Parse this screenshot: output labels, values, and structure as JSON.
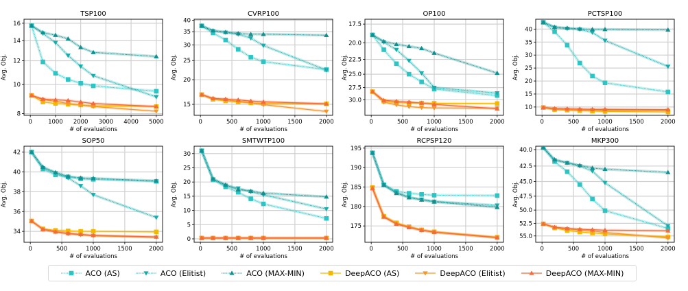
{
  "legend": [
    {
      "name": "ACO (AS)",
      "color": "#2ec4c4",
      "marker": "square",
      "dashed": true
    },
    {
      "name": "ACO (Elitist)",
      "color": "#1aabab",
      "marker": "triangle-down",
      "dashed": true
    },
    {
      "name": "ACO (MAX-MIN)",
      "color": "#148f8f",
      "marker": "triangle-up",
      "dashed": true
    },
    {
      "name": "DeepACO (AS)",
      "color": "#f5b800",
      "marker": "square",
      "dashed": false
    },
    {
      "name": "DeepACO (Elitist)",
      "color": "#f5962a",
      "marker": "triangle-down",
      "dashed": false
    },
    {
      "name": "DeepACO (MAX-MIN)",
      "color": "#f26b3a",
      "marker": "triangle-up",
      "dashed": false
    }
  ],
  "chart_data": [
    {
      "type": "line",
      "title": "TSP100",
      "xlabel": "# of evaluations",
      "ylabel": "Avg. Obj.",
      "yscale": "log",
      "inverted": false,
      "xlim": [
        -250,
        5250
      ],
      "ylim": [
        7.9,
        16.5
      ],
      "xticks": [
        0,
        1000,
        2000,
        3000,
        4000,
        5000
      ],
      "yticks": [
        8,
        10,
        12,
        14,
        16
      ],
      "yticklabels": [
        "8",
        "10",
        "12",
        "14",
        "16"
      ],
      "x": [
        50,
        500,
        1000,
        1500,
        2000,
        2500,
        5000
      ],
      "series": [
        {
          "name": "ACO (AS)",
          "values": [
            15.7,
            11.9,
            10.9,
            10.4,
            10.1,
            9.9,
            9.5
          ]
        },
        {
          "name": "ACO (Elitist)",
          "values": [
            15.7,
            14.8,
            13.8,
            12.5,
            11.5,
            10.7,
            9.1
          ]
        },
        {
          "name": "ACO (MAX-MIN)",
          "values": [
            15.7,
            14.9,
            14.6,
            14.2,
            13.3,
            12.8,
            12.4
          ]
        },
        {
          "name": "DeepACO (AS)",
          "values": [
            9.2,
            8.75,
            8.65,
            8.6,
            8.55,
            8.5,
            8.45
          ]
        },
        {
          "name": "DeepACO (Elitist)",
          "values": [
            9.2,
            8.9,
            8.8,
            8.65,
            8.55,
            8.45,
            8.15
          ]
        },
        {
          "name": "DeepACO (MAX-MIN)",
          "values": [
            9.2,
            8.95,
            8.9,
            8.85,
            8.75,
            8.65,
            8.45
          ]
        }
      ]
    },
    {
      "type": "line",
      "title": "CVRP100",
      "xlabel": "# of evaluations",
      "ylabel": "Avg. Obj.",
      "yscale": "log",
      "inverted": false,
      "xlim": [
        -100,
        2100
      ],
      "ylim": [
        13.2,
        40.5
      ],
      "xticks": [
        0,
        500,
        1000,
        1500,
        2000
      ],
      "yticks": [
        15,
        20,
        25,
        30,
        35,
        40
      ],
      "yticklabels": [
        "15",
        "20",
        "25",
        "30",
        "35",
        "40"
      ],
      "x": [
        20,
        200,
        400,
        600,
        800,
        1000,
        2000
      ],
      "series": [
        {
          "name": "ACO (AS)",
          "values": [
            37.5,
            34.5,
            31.8,
            28.5,
            26.0,
            24.7,
            22.5
          ]
        },
        {
          "name": "ACO (Elitist)",
          "values": [
            37.5,
            35.3,
            34.7,
            34.0,
            32.5,
            29.8,
            22.4
          ]
        },
        {
          "name": "ACO (MAX-MIN)",
          "values": [
            37.5,
            35.5,
            34.8,
            34.3,
            34.0,
            34.0,
            33.6
          ]
        },
        {
          "name": "DeepACO (AS)",
          "values": [
            16.8,
            15.9,
            15.6,
            15.4,
            15.25,
            15.15,
            15.1
          ]
        },
        {
          "name": "DeepACO (Elitist)",
          "values": [
            16.8,
            16.0,
            15.8,
            15.55,
            15.3,
            14.95,
            13.8
          ]
        },
        {
          "name": "DeepACO (MAX-MIN)",
          "values": [
            16.8,
            16.1,
            15.95,
            15.8,
            15.6,
            15.45,
            15.1
          ]
        }
      ]
    },
    {
      "type": "line",
      "title": "OP100",
      "xlabel": "# of evaluations",
      "ylabel": "Avg. Obj.",
      "yscale": "log",
      "inverted": true,
      "xlim": [
        -100,
        2100
      ],
      "ylim": [
        16.9,
        33.5
      ],
      "xticks": [
        0,
        500,
        1000,
        1500,
        2000
      ],
      "yticks": [
        17.5,
        20.0,
        22.5,
        25.0,
        27.5,
        30.0
      ],
      "yticklabels": [
        "17.5",
        "20.0",
        "22.5",
        "25.0",
        "27.5",
        "30.0"
      ],
      "x": [
        20,
        200,
        400,
        600,
        800,
        1000,
        2000
      ],
      "series": [
        {
          "name": "ACO (AS)",
          "values": [
            18.9,
            21.0,
            23.2,
            25.0,
            26.4,
            27.8,
            29.1
          ]
        },
        {
          "name": "ACO (Elitist)",
          "values": [
            18.9,
            19.9,
            21.0,
            22.7,
            24.8,
            27.5,
            28.6
          ]
        },
        {
          "name": "ACO (MAX-MIN)",
          "values": [
            18.9,
            19.8,
            20.2,
            20.5,
            20.8,
            21.5,
            24.8
          ]
        },
        {
          "name": "DeepACO (AS)",
          "values": [
            28.3,
            30.3,
            30.6,
            30.7,
            30.7,
            30.75,
            30.8
          ]
        },
        {
          "name": "DeepACO (Elitist)",
          "values": [
            28.3,
            30.5,
            31.1,
            31.5,
            31.7,
            31.8,
            31.85
          ]
        },
        {
          "name": "DeepACO (MAX-MIN)",
          "values": [
            28.3,
            30.1,
            30.3,
            30.5,
            30.7,
            31.0,
            31.95
          ]
        }
      ]
    },
    {
      "type": "line",
      "title": "PCTSP100",
      "xlabel": "# of evaluations",
      "ylabel": "Avg. Obj.",
      "yscale": "linear",
      "inverted": false,
      "xlim": [
        -100,
        2100
      ],
      "ylim": [
        6.8,
        43.8
      ],
      "xticks": [
        0,
        500,
        1000,
        1500,
        2000
      ],
      "yticks": [
        10,
        15,
        20,
        25,
        30,
        35,
        40
      ],
      "yticklabels": [
        "10",
        "15",
        "20",
        "25",
        "30",
        "35",
        "40"
      ],
      "x": [
        20,
        200,
        400,
        600,
        800,
        1000,
        2000
      ],
      "series": [
        {
          "name": "ACO (AS)",
          "values": [
            42.6,
            39.0,
            33.8,
            26.9,
            21.9,
            19.3,
            15.8
          ]
        },
        {
          "name": "ACO (Elitist)",
          "values": [
            42.6,
            40.6,
            40.2,
            39.9,
            38.7,
            35.6,
            25.6
          ]
        },
        {
          "name": "ACO (MAX-MIN)",
          "values": [
            42.6,
            40.8,
            40.4,
            40.1,
            39.9,
            39.9,
            39.7
          ]
        },
        {
          "name": "DeepACO (AS)",
          "values": [
            9.8,
            9.0,
            8.8,
            8.6,
            8.4,
            8.3,
            8.1
          ]
        },
        {
          "name": "DeepACO (Elitist)",
          "values": [
            9.8,
            9.2,
            9.0,
            8.9,
            8.8,
            8.7,
            8.6
          ]
        },
        {
          "name": "DeepACO (MAX-MIN)",
          "values": [
            9.8,
            9.4,
            9.3,
            9.2,
            9.1,
            9.1,
            9.0
          ]
        }
      ]
    },
    {
      "type": "line",
      "title": "SOP50",
      "xlabel": "# of evaluations",
      "ylabel": "Avg. Obj.",
      "yscale": "linear",
      "inverted": false,
      "xlim": [
        -100,
        2100
      ],
      "ylim": [
        32.9,
        42.6
      ],
      "xticks": [
        0,
        500,
        1000,
        1500,
        2000
      ],
      "yticks": [
        34,
        36,
        38,
        40,
        42
      ],
      "yticklabels": [
        "34",
        "36",
        "38",
        "40",
        "42"
      ],
      "x": [
        20,
        200,
        400,
        600,
        800,
        1000,
        2000
      ],
      "series": [
        {
          "name": "ACO (AS)",
          "values": [
            42.0,
            40.3,
            39.7,
            39.5,
            39.3,
            39.25,
            39.05
          ]
        },
        {
          "name": "ACO (Elitist)",
          "values": [
            42.0,
            40.4,
            39.9,
            39.4,
            38.6,
            37.7,
            35.4
          ]
        },
        {
          "name": "ACO (MAX-MIN)",
          "values": [
            42.0,
            40.5,
            39.95,
            39.55,
            39.4,
            39.35,
            39.1
          ]
        },
        {
          "name": "DeepACO (AS)",
          "values": [
            35.05,
            34.25,
            34.1,
            34.05,
            34.0,
            34.0,
            33.95
          ]
        },
        {
          "name": "DeepACO (Elitist)",
          "values": [
            35.05,
            34.2,
            33.95,
            33.75,
            33.65,
            33.55,
            33.4
          ]
        },
        {
          "name": "DeepACO (MAX-MIN)",
          "values": [
            35.05,
            34.2,
            33.95,
            33.8,
            33.7,
            33.6,
            33.45
          ]
        }
      ]
    },
    {
      "type": "line",
      "title": "SMTWTP100",
      "xlabel": "# of evaluations",
      "ylabel": "Avg. Obj.",
      "yscale": "linear",
      "inverted": false,
      "xlim": [
        -100,
        2100
      ],
      "ylim": [
        -1.2,
        32.6
      ],
      "xticks": [
        0,
        500,
        1000,
        1500,
        2000
      ],
      "yticks": [
        0,
        5,
        10,
        15,
        20,
        25,
        30
      ],
      "yticklabels": [
        "0",
        "5",
        "10",
        "15",
        "20",
        "25",
        "30"
      ],
      "x": [
        20,
        200,
        400,
        600,
        800,
        1000,
        2000
      ],
      "series": [
        {
          "name": "ACO (AS)",
          "values": [
            31.0,
            20.8,
            18.3,
            16.4,
            14.1,
            12.3,
            7.2
          ]
        },
        {
          "name": "ACO (Elitist)",
          "values": [
            31.0,
            21.0,
            18.8,
            17.8,
            16.6,
            15.5,
            10.5
          ]
        },
        {
          "name": "ACO (MAX-MIN)",
          "values": [
            31.0,
            21.1,
            19.0,
            17.3,
            16.8,
            16.1,
            14.8
          ]
        },
        {
          "name": "DeepACO (AS)",
          "values": [
            0.3,
            0.3,
            0.3,
            0.3,
            0.3,
            0.3,
            0.3
          ]
        },
        {
          "name": "DeepACO (Elitist)",
          "values": [
            0.3,
            0.3,
            0.3,
            0.3,
            0.3,
            0.3,
            0.3
          ]
        },
        {
          "name": "DeepACO (MAX-MIN)",
          "values": [
            0.3,
            0.3,
            0.3,
            0.3,
            0.3,
            0.3,
            0.3
          ]
        }
      ]
    },
    {
      "type": "line",
      "title": "RCPSP120",
      "xlabel": "# of evaluations",
      "ylabel": "Avg. Obj.",
      "yscale": "linear",
      "inverted": false,
      "xlim": [
        -100,
        2100
      ],
      "ylim": [
        170.8,
        195.5
      ],
      "xticks": [
        0,
        500,
        1000,
        1500,
        2000
      ],
      "yticks": [
        175,
        180,
        185,
        190,
        195
      ],
      "yticklabels": [
        "175",
        "180",
        "185",
        "190",
        "195"
      ],
      "x": [
        20,
        200,
        400,
        600,
        800,
        1000,
        2000
      ],
      "series": [
        {
          "name": "ACO (AS)",
          "values": [
            193.8,
            185.6,
            183.9,
            183.4,
            183.1,
            182.9,
            182.8
          ]
        },
        {
          "name": "ACO (Elitist)",
          "values": [
            193.8,
            185.5,
            183.6,
            182.4,
            181.8,
            181.3,
            180.3
          ]
        },
        {
          "name": "ACO (MAX-MIN)",
          "values": [
            193.8,
            185.5,
            183.4,
            182.3,
            181.7,
            181.2,
            179.8
          ]
        },
        {
          "name": "DeepACO (AS)",
          "values": [
            184.9,
            177.5,
            175.8,
            174.8,
            174.0,
            173.5,
            172.1
          ]
        },
        {
          "name": "DeepACO (Elitist)",
          "values": [
            184.8,
            177.4,
            175.6,
            174.7,
            173.9,
            173.4,
            172.0
          ]
        },
        {
          "name": "DeepACO (MAX-MIN)",
          "values": [
            184.6,
            177.3,
            175.5,
            174.6,
            173.9,
            173.4,
            172.0
          ]
        }
      ]
    },
    {
      "type": "line",
      "title": "MKP300",
      "xlabel": "# of evaluations",
      "ylabel": "Avg. Obj.",
      "yscale": "log",
      "inverted": true,
      "xlim": [
        -100,
        2100
      ],
      "ylim": [
        39.5,
        56.3
      ],
      "xticks": [
        0,
        500,
        1000,
        1500,
        2000
      ],
      "yticks": [
        40.0,
        42.5,
        45.0,
        47.5,
        50.0,
        52.5,
        55.0
      ],
      "yticklabels": [
        "40.0",
        "42.5",
        "45.0",
        "47.5",
        "50.0",
        "52.5",
        "55.0"
      ],
      "x": [
        20,
        200,
        400,
        600,
        800,
        1000,
        2000
      ],
      "series": [
        {
          "name": "ACO (AS)",
          "values": [
            39.7,
            41.8,
            43.4,
            45.5,
            48.0,
            50.1,
            53.5
          ]
        },
        {
          "name": "ACO (Elitist)",
          "values": [
            39.7,
            41.6,
            42.0,
            42.5,
            43.3,
            45.2,
            53.0
          ]
        },
        {
          "name": "ACO (MAX-MIN)",
          "values": [
            39.7,
            41.5,
            42.0,
            42.4,
            42.8,
            43.0,
            43.5
          ]
        },
        {
          "name": "DeepACO (AS)",
          "values": [
            52.6,
            53.4,
            53.9,
            54.2,
            54.4,
            54.6,
            55.2
          ]
        },
        {
          "name": "DeepACO (Elitist)",
          "values": [
            52.6,
            53.3,
            53.6,
            53.8,
            54.0,
            54.3,
            55.4
          ]
        },
        {
          "name": "DeepACO (MAX-MIN)",
          "values": [
            52.6,
            53.25,
            53.5,
            53.65,
            53.75,
            53.85,
            53.95
          ]
        }
      ]
    }
  ]
}
